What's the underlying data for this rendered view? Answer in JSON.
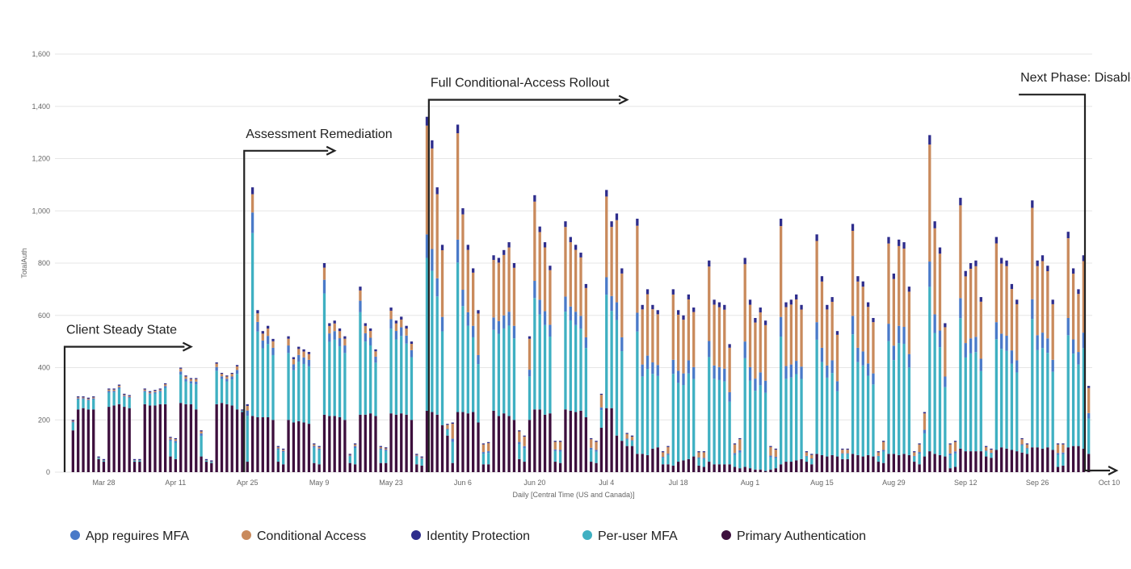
{
  "chart_data": {
    "type": "bar",
    "stacked": true,
    "title": "",
    "xlabel": "Daily [Central Time (US and Canada)]",
    "ylabel": "TotalAuth",
    "ylim": [
      0,
      1600
    ],
    "yticks": [
      0,
      200,
      400,
      600,
      800,
      1000,
      1200,
      1400,
      1600
    ],
    "yticks_labels": [
      "0",
      "200",
      "400",
      "600",
      "800",
      "1,000",
      "1,200",
      "1,400",
      "1,600"
    ],
    "grid": true,
    "legend_position": "bottom",
    "x_ticks": [
      {
        "label": "Mar 28",
        "day": 7
      },
      {
        "label": "Apr 11",
        "day": 21
      },
      {
        "label": "Apr 25",
        "day": 35
      },
      {
        "label": "May 9",
        "day": 49
      },
      {
        "label": "May 23",
        "day": 63
      },
      {
        "label": "Jun 6",
        "day": 77
      },
      {
        "label": "Jun 20",
        "day": 91
      },
      {
        "label": "Jul 4",
        "day": 105
      },
      {
        "label": "Jul 18",
        "day": 119
      },
      {
        "label": "Aug 1",
        "day": 133
      },
      {
        "label": "Aug 15",
        "day": 147
      },
      {
        "label": "Aug 29",
        "day": 161
      },
      {
        "label": "Sep 12",
        "day": 175
      },
      {
        "label": "Sep 26",
        "day": 189
      },
      {
        "label": "Oct 10",
        "day": 203
      }
    ],
    "series": [
      {
        "name": "App reguires MFA",
        "color": "#4a7ac8"
      },
      {
        "name": "Conditional Access",
        "color": "#c98a5c"
      },
      {
        "name": "Identity Protection",
        "color": "#2e2d8c"
      },
      {
        "name": "Per-user MFA",
        "color": "#3fb0c2"
      },
      {
        "name": "Primary Authentication",
        "color": "#3d0f3d"
      }
    ],
    "phases": [
      {
        "label": "Client Steady State",
        "start_day": 0,
        "end_day": 24,
        "level": 480
      },
      {
        "label": "Assessment Remediation",
        "start_day": 35,
        "end_day": 52,
        "level": 1230
      },
      {
        "label": "Full Conditional-Access Rollout",
        "start_day": 71,
        "end_day": 109,
        "level": 1425
      },
      {
        "label": "Next Phase: Disable Per-user MFA",
        "start_day": 186,
        "end_day": 209,
        "level": 1445
      }
    ],
    "points": [
      {
        "day": 1,
        "total": 200,
        "primary": 160
      },
      {
        "day": 2,
        "total": 290,
        "primary": 240
      },
      {
        "day": 3,
        "total": 290,
        "primary": 245
      },
      {
        "day": 4,
        "total": 285,
        "primary": 240
      },
      {
        "day": 5,
        "total": 290,
        "primary": 240
      },
      {
        "day": 6,
        "total": 60,
        "primary": 50
      },
      {
        "day": 7,
        "total": 50,
        "primary": 40
      },
      {
        "day": 8,
        "total": 320,
        "primary": 250
      },
      {
        "day": 9,
        "total": 320,
        "primary": 255
      },
      {
        "day": 10,
        "total": 335,
        "primary": 260
      },
      {
        "day": 11,
        "total": 300,
        "primary": 250
      },
      {
        "day": 12,
        "total": 295,
        "primary": 245
      },
      {
        "day": 13,
        "total": 50,
        "primary": 40
      },
      {
        "day": 14,
        "total": 50,
        "primary": 40
      },
      {
        "day": 15,
        "total": 320,
        "primary": 260
      },
      {
        "day": 16,
        "total": 310,
        "primary": 255
      },
      {
        "day": 17,
        "total": 315,
        "primary": 255
      },
      {
        "day": 18,
        "total": 320,
        "primary": 260
      },
      {
        "day": 19,
        "total": 340,
        "primary": 260
      },
      {
        "day": 20,
        "total": 135,
        "primary": 60
      },
      {
        "day": 21,
        "total": 130,
        "primary": 50
      },
      {
        "day": 22,
        "total": 400,
        "primary": 265
      },
      {
        "day": 23,
        "total": 370,
        "primary": 260
      },
      {
        "day": 24,
        "total": 360,
        "primary": 260
      },
      {
        "day": 25,
        "total": 360,
        "primary": 240
      },
      {
        "day": 26,
        "total": 160,
        "primary": 60
      },
      {
        "day": 27,
        "total": 50,
        "primary": 40
      },
      {
        "day": 28,
        "total": 45,
        "primary": 35
      },
      {
        "day": 29,
        "total": 420,
        "primary": 260
      },
      {
        "day": 30,
        "total": 380,
        "primary": 265
      },
      {
        "day": 31,
        "total": 370,
        "primary": 260
      },
      {
        "day": 32,
        "total": 380,
        "primary": 255
      },
      {
        "day": 33,
        "total": 410,
        "primary": 240
      },
      {
        "day": 34,
        "total": 240,
        "primary": 230
      },
      {
        "day": 35,
        "total": 260,
        "primary": 40
      },
      {
        "day": 36,
        "total": 1090,
        "primary": 215
      },
      {
        "day": 37,
        "total": 620,
        "primary": 210
      },
      {
        "day": 38,
        "total": 540,
        "primary": 210
      },
      {
        "day": 39,
        "total": 560,
        "primary": 210
      },
      {
        "day": 40,
        "total": 510,
        "primary": 200
      },
      {
        "day": 41,
        "total": 100,
        "primary": 40
      },
      {
        "day": 42,
        "total": 90,
        "primary": 30
      },
      {
        "day": 43,
        "total": 520,
        "primary": 200
      },
      {
        "day": 44,
        "total": 440,
        "primary": 190
      },
      {
        "day": 45,
        "total": 480,
        "primary": 195
      },
      {
        "day": 46,
        "total": 470,
        "primary": 190
      },
      {
        "day": 47,
        "total": 460,
        "primary": 185
      },
      {
        "day": 48,
        "total": 110,
        "primary": 35
      },
      {
        "day": 49,
        "total": 100,
        "primary": 30
      },
      {
        "day": 50,
        "total": 800,
        "primary": 220
      },
      {
        "day": 51,
        "total": 570,
        "primary": 215
      },
      {
        "day": 52,
        "total": 580,
        "primary": 215
      },
      {
        "day": 53,
        "total": 550,
        "primary": 210
      },
      {
        "day": 54,
        "total": 520,
        "primary": 200
      },
      {
        "day": 55,
        "total": 70,
        "primary": 35
      },
      {
        "day": 56,
        "total": 110,
        "primary": 30
      },
      {
        "day": 57,
        "total": 710,
        "primary": 220
      },
      {
        "day": 58,
        "total": 570,
        "primary": 220
      },
      {
        "day": 59,
        "total": 550,
        "primary": 225
      },
      {
        "day": 60,
        "total": 470,
        "primary": 215
      },
      {
        "day": 61,
        "total": 100,
        "primary": 35
      },
      {
        "day": 62,
        "total": 95,
        "primary": 35
      },
      {
        "day": 63,
        "total": 630,
        "primary": 225
      },
      {
        "day": 64,
        "total": 580,
        "primary": 220
      },
      {
        "day": 65,
        "total": 595,
        "primary": 225
      },
      {
        "day": 66,
        "total": 560,
        "primary": 220
      },
      {
        "day": 67,
        "total": 500,
        "primary": 200
      },
      {
        "day": 68,
        "total": 70,
        "primary": 30
      },
      {
        "day": 69,
        "total": 60,
        "primary": 25
      },
      {
        "day": 70,
        "total": 1360,
        "primary": 235
      },
      {
        "day": 71,
        "total": 1270,
        "primary": 230
      },
      {
        "day": 72,
        "total": 1090,
        "primary": 220
      },
      {
        "day": 73,
        "total": 870,
        "primary": 180
      },
      {
        "day": 74,
        "total": 185,
        "primary": 140
      },
      {
        "day": 75,
        "total": 190,
        "primary": 35
      },
      {
        "day": 76,
        "total": 1330,
        "primary": 230
      },
      {
        "day": 77,
        "total": 1010,
        "primary": 230
      },
      {
        "day": 78,
        "total": 870,
        "primary": 225
      },
      {
        "day": 79,
        "total": 780,
        "primary": 230
      },
      {
        "day": 80,
        "total": 620,
        "primary": 190
      },
      {
        "day": 81,
        "total": 110,
        "primary": 30
      },
      {
        "day": 82,
        "total": 115,
        "primary": 30
      },
      {
        "day": 83,
        "total": 830,
        "primary": 235
      },
      {
        "day": 84,
        "total": 820,
        "primary": 215
      },
      {
        "day": 85,
        "total": 850,
        "primary": 225
      },
      {
        "day": 86,
        "total": 880,
        "primary": 215
      },
      {
        "day": 87,
        "total": 800,
        "primary": 200
      },
      {
        "day": 88,
        "total": 160,
        "primary": 50
      },
      {
        "day": 89,
        "total": 140,
        "primary": 40
      },
      {
        "day": 90,
        "total": 520,
        "primary": 200
      },
      {
        "day": 91,
        "total": 1060,
        "primary": 240
      },
      {
        "day": 92,
        "total": 940,
        "primary": 240
      },
      {
        "day": 93,
        "total": 880,
        "primary": 220
      },
      {
        "day": 94,
        "total": 790,
        "primary": 225
      },
      {
        "day": 95,
        "total": 120,
        "primary": 40
      },
      {
        "day": 96,
        "total": 120,
        "primary": 35
      },
      {
        "day": 97,
        "total": 960,
        "primary": 240
      },
      {
        "day": 98,
        "total": 900,
        "primary": 235
      },
      {
        "day": 99,
        "total": 870,
        "primary": 230
      },
      {
        "day": 100,
        "total": 840,
        "primary": 235
      },
      {
        "day": 101,
        "total": 720,
        "primary": 210
      },
      {
        "day": 102,
        "total": 130,
        "primary": 40
      },
      {
        "day": 103,
        "total": 120,
        "primary": 35
      },
      {
        "day": 104,
        "total": 300,
        "primary": 170
      },
      {
        "day": 105,
        "total": 1080,
        "primary": 245
      },
      {
        "day": 106,
        "total": 960,
        "primary": 245
      },
      {
        "day": 107,
        "total": 990,
        "primary": 140
      },
      {
        "day": 108,
        "total": 780,
        "primary": 120
      },
      {
        "day": 109,
        "total": 150,
        "primary": 100
      },
      {
        "day": 110,
        "total": 140,
        "primary": 100
      },
      {
        "day": 111,
        "total": 970,
        "primary": 70
      },
      {
        "day": 112,
        "total": 640,
        "primary": 70
      },
      {
        "day": 113,
        "total": 700,
        "primary": 65
      },
      {
        "day": 114,
        "total": 640,
        "primary": 90
      },
      {
        "day": 115,
        "total": 620,
        "primary": 95
      },
      {
        "day": 116,
        "total": 80,
        "primary": 30
      },
      {
        "day": 117,
        "total": 100,
        "primary": 30
      },
      {
        "day": 118,
        "total": 700,
        "primary": 25
      },
      {
        "day": 119,
        "total": 620,
        "primary": 40
      },
      {
        "day": 120,
        "total": 600,
        "primary": 45
      },
      {
        "day": 121,
        "total": 680,
        "primary": 50
      },
      {
        "day": 122,
        "total": 630,
        "primary": 60
      },
      {
        "day": 123,
        "total": 80,
        "primary": 25
      },
      {
        "day": 124,
        "total": 80,
        "primary": 20
      },
      {
        "day": 125,
        "total": 810,
        "primary": 40
      },
      {
        "day": 126,
        "total": 660,
        "primary": 30
      },
      {
        "day": 127,
        "total": 650,
        "primary": 30
      },
      {
        "day": 128,
        "total": 640,
        "primary": 30
      },
      {
        "day": 129,
        "total": 490,
        "primary": 30
      },
      {
        "day": 130,
        "total": 110,
        "primary": 20
      },
      {
        "day": 131,
        "total": 130,
        "primary": 15
      },
      {
        "day": 132,
        "total": 820,
        "primary": 20
      },
      {
        "day": 133,
        "total": 660,
        "primary": 15
      },
      {
        "day": 134,
        "total": 590,
        "primary": 10
      },
      {
        "day": 135,
        "total": 630,
        "primary": 10
      },
      {
        "day": 136,
        "total": 580,
        "primary": 5
      },
      {
        "day": 137,
        "total": 100,
        "primary": 10
      },
      {
        "day": 138,
        "total": 90,
        "primary": 15
      },
      {
        "day": 139,
        "total": 970,
        "primary": 30
      },
      {
        "day": 140,
        "total": 650,
        "primary": 40
      },
      {
        "day": 141,
        "total": 660,
        "primary": 40
      },
      {
        "day": 142,
        "total": 680,
        "primary": 45
      },
      {
        "day": 143,
        "total": 640,
        "primary": 50
      },
      {
        "day": 144,
        "total": 80,
        "primary": 40
      },
      {
        "day": 145,
        "total": 70,
        "primary": 30
      },
      {
        "day": 146,
        "total": 910,
        "primary": 70
      },
      {
        "day": 147,
        "total": 750,
        "primary": 65
      },
      {
        "day": 148,
        "total": 640,
        "primary": 60
      },
      {
        "day": 149,
        "total": 670,
        "primary": 65
      },
      {
        "day": 150,
        "total": 540,
        "primary": 60
      },
      {
        "day": 151,
        "total": 90,
        "primary": 50
      },
      {
        "day": 152,
        "total": 90,
        "primary": 50
      },
      {
        "day": 153,
        "total": 950,
        "primary": 70
      },
      {
        "day": 154,
        "total": 750,
        "primary": 65
      },
      {
        "day": 155,
        "total": 730,
        "primary": 60
      },
      {
        "day": 156,
        "total": 650,
        "primary": 65
      },
      {
        "day": 157,
        "total": 590,
        "primary": 60
      },
      {
        "day": 158,
        "total": 80,
        "primary": 40
      },
      {
        "day": 159,
        "total": 120,
        "primary": 35
      },
      {
        "day": 160,
        "total": 900,
        "primary": 70
      },
      {
        "day": 161,
        "total": 760,
        "primary": 70
      },
      {
        "day": 162,
        "total": 890,
        "primary": 65
      },
      {
        "day": 163,
        "total": 880,
        "primary": 70
      },
      {
        "day": 164,
        "total": 710,
        "primary": 65
      },
      {
        "day": 165,
        "total": 80,
        "primary": 40
      },
      {
        "day": 166,
        "total": 110,
        "primary": 30
      },
      {
        "day": 167,
        "total": 230,
        "primary": 60
      },
      {
        "day": 168,
        "total": 1290,
        "primary": 80
      },
      {
        "day": 169,
        "total": 960,
        "primary": 70
      },
      {
        "day": 170,
        "total": 860,
        "primary": 65
      },
      {
        "day": 171,
        "total": 570,
        "primary": 60
      },
      {
        "day": 172,
        "total": 110,
        "primary": 15
      },
      {
        "day": 173,
        "total": 120,
        "primary": 20
      },
      {
        "day": 174,
        "total": 1050,
        "primary": 90
      },
      {
        "day": 175,
        "total": 770,
        "primary": 80
      },
      {
        "day": 176,
        "total": 800,
        "primary": 80
      },
      {
        "day": 177,
        "total": 810,
        "primary": 80
      },
      {
        "day": 178,
        "total": 670,
        "primary": 80
      },
      {
        "day": 179,
        "total": 100,
        "primary": 60
      },
      {
        "day": 180,
        "total": 90,
        "primary": 55
      },
      {
        "day": 181,
        "total": 900,
        "primary": 85
      },
      {
        "day": 182,
        "total": 820,
        "primary": 95
      },
      {
        "day": 183,
        "total": 810,
        "primary": 90
      },
      {
        "day": 184,
        "total": 720,
        "primary": 85
      },
      {
        "day": 185,
        "total": 660,
        "primary": 80
      },
      {
        "day": 186,
        "total": 130,
        "primary": 75
      },
      {
        "day": 187,
        "total": 110,
        "primary": 70
      },
      {
        "day": 188,
        "total": 1040,
        "primary": 95
      },
      {
        "day": 189,
        "total": 810,
        "primary": 95
      },
      {
        "day": 190,
        "total": 830,
        "primary": 90
      },
      {
        "day": 191,
        "total": 790,
        "primary": 95
      },
      {
        "day": 192,
        "total": 660,
        "primary": 85
      },
      {
        "day": 193,
        "total": 110,
        "primary": 20
      },
      {
        "day": 194,
        "total": 110,
        "primary": 25
      },
      {
        "day": 195,
        "total": 920,
        "primary": 95
      },
      {
        "day": 196,
        "total": 780,
        "primary": 100
      },
      {
        "day": 197,
        "total": 700,
        "primary": 100
      },
      {
        "day": 198,
        "total": 830,
        "primary": 90
      },
      {
        "day": 199,
        "total": 330,
        "primary": 70
      }
    ]
  },
  "legend": {
    "items": [
      {
        "label": "App reguires MFA",
        "color": "#4a7ac8",
        "icon": "legend-dot"
      },
      {
        "label": "Conditional Access",
        "color": "#c98a5c",
        "icon": "legend-dot"
      },
      {
        "label": "Identity Protection",
        "color": "#2e2d8c",
        "icon": "legend-dot"
      },
      {
        "label": "Per-user MFA",
        "color": "#3fb0c2",
        "icon": "legend-dot"
      },
      {
        "label": "Primary Authentication",
        "color": "#3d0f3d",
        "icon": "legend-dot"
      }
    ]
  }
}
